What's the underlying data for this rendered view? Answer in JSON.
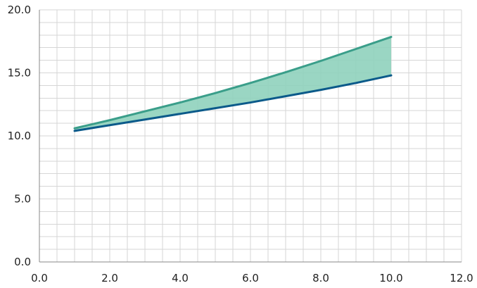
{
  "chart_data": {
    "type": "area",
    "title": "",
    "xlabel": "",
    "ylabel": "",
    "xlim": [
      0,
      12
    ],
    "ylim": [
      0,
      20
    ],
    "grid": true,
    "x_ticks": [
      0,
      2,
      4,
      6,
      8,
      10,
      12
    ],
    "x_tick_labels": [
      "0.0",
      "2.0",
      "4.0",
      "6.0",
      "8.0",
      "10.0",
      "12.0"
    ],
    "y_ticks": [
      0,
      5,
      10,
      15,
      20
    ],
    "y_tick_labels": [
      "0.0",
      "5.0",
      "10.0",
      "15.0",
      "20.0"
    ],
    "x_minor_step": 0.5,
    "y_minor_step": 1,
    "series": [
      {
        "color": "#3a9e8a",
        "x": [
          1,
          2,
          3,
          4,
          5,
          6,
          7,
          8,
          9,
          10
        ],
        "y": [
          10.6,
          11.25,
          11.95,
          12.65,
          13.4,
          14.2,
          15.05,
          15.95,
          16.9,
          17.85
        ]
      },
      {
        "color": "#0b5a8a",
        "x": [
          1,
          2,
          3,
          4,
          5,
          6,
          7,
          8,
          9,
          10
        ],
        "y": [
          10.4,
          10.85,
          11.3,
          11.75,
          12.2,
          12.65,
          13.15,
          13.65,
          14.2,
          14.8
        ]
      }
    ],
    "fill_between": {
      "color": "#8fd1bc"
    }
  }
}
